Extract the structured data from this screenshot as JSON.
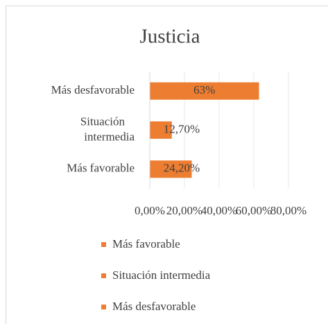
{
  "chart_data": {
    "type": "bar",
    "orientation": "horizontal",
    "title": "Justicia",
    "categories": [
      "Más favorable",
      "Situación intermedia",
      "Más desfavorable"
    ],
    "values": [
      24.2,
      12.7,
      63
    ],
    "value_labels": [
      "24,20%",
      "12,70%",
      "63%"
    ],
    "color": "#ed7d31",
    "xlim": [
      0,
      80
    ],
    "xticks": [
      {
        "value": 0,
        "label": "0,00%"
      },
      {
        "value": 20,
        "label": "20,00%"
      },
      {
        "value": 40,
        "label": "40,00%"
      },
      {
        "value": 60,
        "label": "60,00%"
      },
      {
        "value": 80,
        "label": "80,00%"
      }
    ],
    "grid": true,
    "legend": "bottom"
  }
}
